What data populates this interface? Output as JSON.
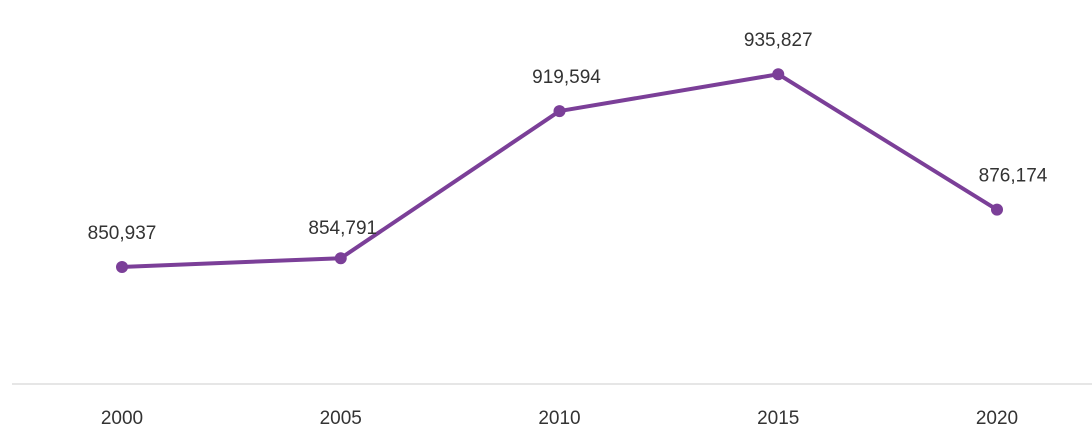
{
  "chart_data": {
    "type": "line",
    "categories": [
      "2000",
      "2005",
      "2010",
      "2015",
      "2020"
    ],
    "series": [
      {
        "values": [
          850937,
          854791,
          919594,
          935827,
          876174
        ],
        "labels": [
          "850,937",
          "854,791",
          "919,594",
          "935,827",
          "876,174"
        ],
        "color": "#7b3f98"
      }
    ],
    "ylim": [
      780000,
      965000
    ],
    "grid": false,
    "legend": "none"
  }
}
